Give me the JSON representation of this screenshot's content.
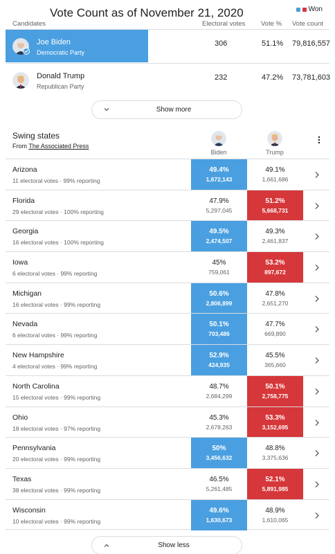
{
  "title": "Vote Count as of November 21, 2020",
  "legend": {
    "label": "Won",
    "biden_color": "#4a9fe0",
    "trump_color": "#d6373a"
  },
  "headers": {
    "candidates": "Candidates",
    "electoral": "Electoral votes",
    "vote_pct": "Vote %",
    "vote_count": "Vote count"
  },
  "candidates": [
    {
      "name": "Joe Biden",
      "party": "Democratic Party",
      "electoral": "306",
      "pct": "51.1%",
      "count": "79,816,557"
    },
    {
      "name": "Donald Trump",
      "party": "Republican Party",
      "electoral": "232",
      "pct": "47.2%",
      "count": "73,781,603"
    }
  ],
  "show_more": "Show more",
  "swing": {
    "title": "Swing states",
    "from_prefix": "From ",
    "source": "The Associated Press",
    "biden_label": "Biden",
    "trump_label": "Trump"
  },
  "states": [
    {
      "name": "Arizona",
      "sub": "11 electoral votes · 99% reporting",
      "b_pct": "49.4%",
      "b_votes": "1,672,143",
      "t_pct": "49.1%",
      "t_votes": "1,661,686",
      "winner": "b"
    },
    {
      "name": "Florida",
      "sub": "29 electoral votes · 100% reporting",
      "b_pct": "47.9%",
      "b_votes": "5,297,045",
      "t_pct": "51.2%",
      "t_votes": "5,668,731",
      "winner": "t"
    },
    {
      "name": "Georgia",
      "sub": "16 electoral votes · 100% reporting",
      "b_pct": "49.5%",
      "b_votes": "2,474,507",
      "t_pct": "49.3%",
      "t_votes": "2,461,837",
      "winner": "b"
    },
    {
      "name": "Iowa",
      "sub": "6 electoral votes · 99% reporting",
      "b_pct": "45%",
      "b_votes": "759,061",
      "t_pct": "53.2%",
      "t_votes": "897,672",
      "winner": "t"
    },
    {
      "name": "Michigan",
      "sub": "16 electoral votes · 99% reporting",
      "b_pct": "50.6%",
      "b_votes": "2,806,899",
      "t_pct": "47.8%",
      "t_votes": "2,651,270",
      "winner": "b"
    },
    {
      "name": "Nevada",
      "sub": "6 electoral votes · 99% reporting",
      "b_pct": "50.1%",
      "b_votes": "703,486",
      "t_pct": "47.7%",
      "t_votes": "669,890",
      "winner": "b"
    },
    {
      "name": "New Hampshire",
      "sub": "4 electoral votes · 99% reporting",
      "b_pct": "52.9%",
      "b_votes": "424,935",
      "t_pct": "45.5%",
      "t_votes": "365,660",
      "winner": "b"
    },
    {
      "name": "North Carolina",
      "sub": "15 electoral votes · 99% reporting",
      "b_pct": "48.7%",
      "b_votes": "2,684,299",
      "t_pct": "50.1%",
      "t_votes": "2,758,775",
      "winner": "t"
    },
    {
      "name": "Ohio",
      "sub": "18 electoral votes · 97% reporting",
      "b_pct": "45.3%",
      "b_votes": "2,678,263",
      "t_pct": "53.3%",
      "t_votes": "3,152,695",
      "winner": "t"
    },
    {
      "name": "Pennsylvania",
      "sub": "20 electoral votes · 99% reporting",
      "b_pct": "50%",
      "b_votes": "3,456,632",
      "t_pct": "48.8%",
      "t_votes": "3,375,636",
      "winner": "b"
    },
    {
      "name": "Texas",
      "sub": "38 electoral votes · 99% reporting",
      "b_pct": "46.5%",
      "b_votes": "5,261,485",
      "t_pct": "52.1%",
      "t_votes": "5,891,985",
      "winner": "t"
    },
    {
      "name": "Wisconsin",
      "sub": "10 electoral votes · 99% reporting",
      "b_pct": "49.6%",
      "b_votes": "1,630,673",
      "t_pct": "48.9%",
      "t_votes": "1,610,065",
      "winner": "b"
    }
  ],
  "show_less": "Show less"
}
